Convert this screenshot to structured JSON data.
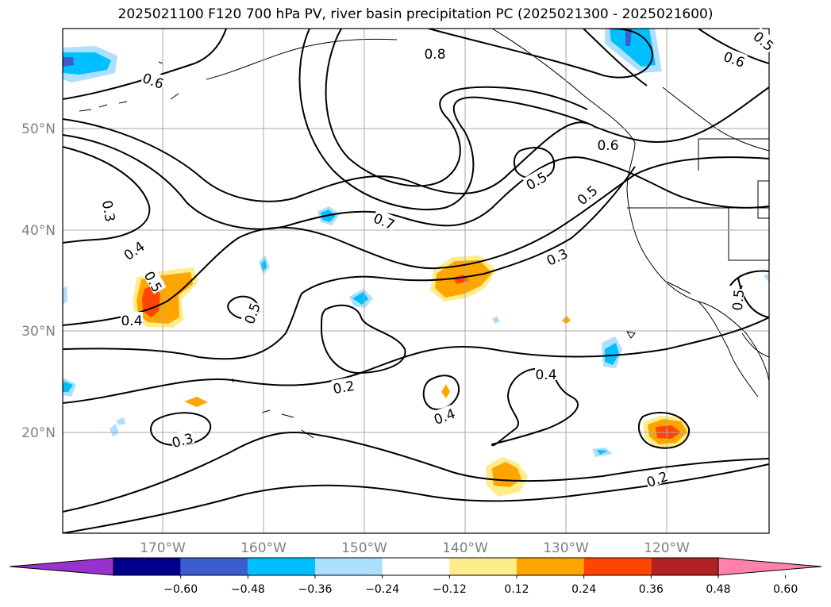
{
  "title": "2025021100 F120 700 hPa PV, river basin precipitation PC (2025021300 - 2025021600)",
  "lat_labels": [
    "50°N",
    "40°N",
    "30°N",
    "20°N"
  ],
  "lon_labels": [
    "170°W",
    "160°W",
    "150°W",
    "140°W",
    "130°W",
    "120°W"
  ],
  "contour_labels": [
    {
      "text": "0.8"
    },
    {
      "text": "0.6"
    },
    {
      "text": "0.6"
    },
    {
      "text": "0.6"
    },
    {
      "text": "0.5"
    },
    {
      "text": "0.5"
    },
    {
      "text": "0.7"
    },
    {
      "text": "0.3"
    },
    {
      "text": "0.3"
    },
    {
      "text": "0.4"
    },
    {
      "text": "0.5"
    },
    {
      "text": "0.4"
    },
    {
      "text": "0.5"
    },
    {
      "text": "0.2"
    },
    {
      "text": "0.4"
    },
    {
      "text": "0.4"
    },
    {
      "text": "0.3"
    },
    {
      "text": "0.2"
    },
    {
      "text": "0.5"
    },
    {
      "text": "0.5"
    }
  ],
  "colorbar": {
    "colors": [
      "#9932CC",
      "#00008B",
      "#3A5FCD",
      "#00BFFF",
      "#ADDFFF",
      "#FFFFFF",
      "#FFEC8B",
      "#FFA500",
      "#FF4500",
      "#B22222",
      "#FF82AB"
    ],
    "tick_labels": [
      "−0.60",
      "−0.48",
      "−0.36",
      "−0.24",
      "−0.12",
      "0.12",
      "0.24",
      "0.36",
      "0.48",
      "0.60"
    ]
  },
  "colors": {
    "grid": "#a9a9a9",
    "axis_label": "#808080",
    "contour": "#000000"
  }
}
